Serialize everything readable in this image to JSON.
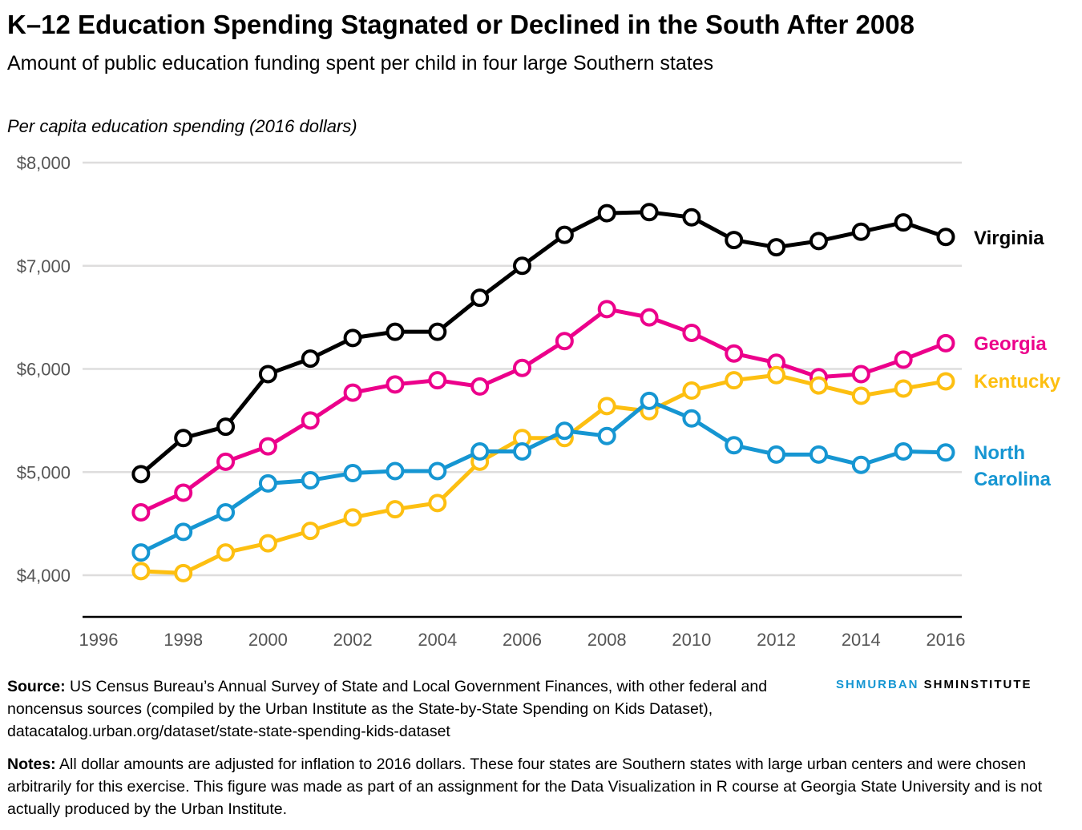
{
  "title": "K–12 Education Spending Stagnated or Declined in the South After 2008",
  "subtitle": "Amount of public education funding spent per child in four large Southern states",
  "brand": {
    "part1": "SHMURBAN",
    "part2": "SHMINSTITUTE"
  },
  "footer": {
    "source_label": "Source:",
    "source_text": " US Census Bureau’s Annual Survey of State and Local Government Finances, with other federal and noncensus sources (compiled by the Urban Institute as the State-by-State Spending on Kids Dataset), datacatalog.urban.org/dataset/state-state-spending-kids-dataset",
    "notes_label": "Notes:",
    "notes_text": " All dollar amounts are adjusted for inflation to 2016 dollars. These four states are Southern states with large urban centers and were chosen arbitrarily for this exercise. This figure was made as part of an assignment for the Data Visualization in R course at Georgia State University and is not actually produced by the Urban Institute."
  },
  "chart_data": {
    "type": "line",
    "title": "K–12 Education Spending Stagnated or Declined in the South After 2008",
    "xlabel": "",
    "ylabel": "Per capita education spending (2016 dollars)",
    "xlim": [
      1996,
      2016
    ],
    "ylim": [
      3600,
      8000
    ],
    "x_ticks": [
      1996,
      1998,
      2000,
      2002,
      2004,
      2006,
      2008,
      2010,
      2012,
      2014,
      2016
    ],
    "y_ticks": [
      4000,
      5000,
      6000,
      7000,
      8000
    ],
    "y_tick_labels": [
      "$4,000",
      "$5,000",
      "$6,000",
      "$7,000",
      "$8,000"
    ],
    "grid": "horizontal",
    "legend": "direct labels at right end of lines",
    "x": [
      1997,
      1998,
      1999,
      2000,
      2001,
      2002,
      2003,
      2004,
      2005,
      2006,
      2007,
      2008,
      2009,
      2010,
      2011,
      2012,
      2013,
      2014,
      2015,
      2016
    ],
    "series": [
      {
        "name": "Virginia",
        "color": "#000000",
        "values": [
          4980,
          5330,
          5440,
          5950,
          6100,
          6300,
          6360,
          6360,
          6690,
          7000,
          7300,
          7510,
          7520,
          7470,
          7250,
          7180,
          7240,
          7330,
          7420,
          7280
        ]
      },
      {
        "name": "Georgia",
        "color": "#ec008b",
        "values": [
          4610,
          4800,
          5100,
          5250,
          5500,
          5770,
          5850,
          5890,
          5830,
          6010,
          6270,
          6580,
          6500,
          6350,
          6150,
          6060,
          5920,
          5950,
          6090,
          6250
        ]
      },
      {
        "name": "Kentucky",
        "color": "#fdbf11",
        "values": [
          4040,
          4020,
          4220,
          4310,
          4430,
          4560,
          4640,
          4700,
          5100,
          5330,
          5330,
          5640,
          5590,
          5790,
          5890,
          5940,
          5840,
          5740,
          5810,
          5880
        ]
      },
      {
        "name": "North Carolina",
        "color": "#1696d2",
        "label_lines": [
          "North",
          "Carolina"
        ],
        "values": [
          4220,
          4420,
          4610,
          4890,
          4920,
          4990,
          5010,
          5010,
          5200,
          5200,
          5400,
          5350,
          5690,
          5520,
          5260,
          5170,
          5170,
          5070,
          5200,
          5190
        ]
      }
    ]
  }
}
